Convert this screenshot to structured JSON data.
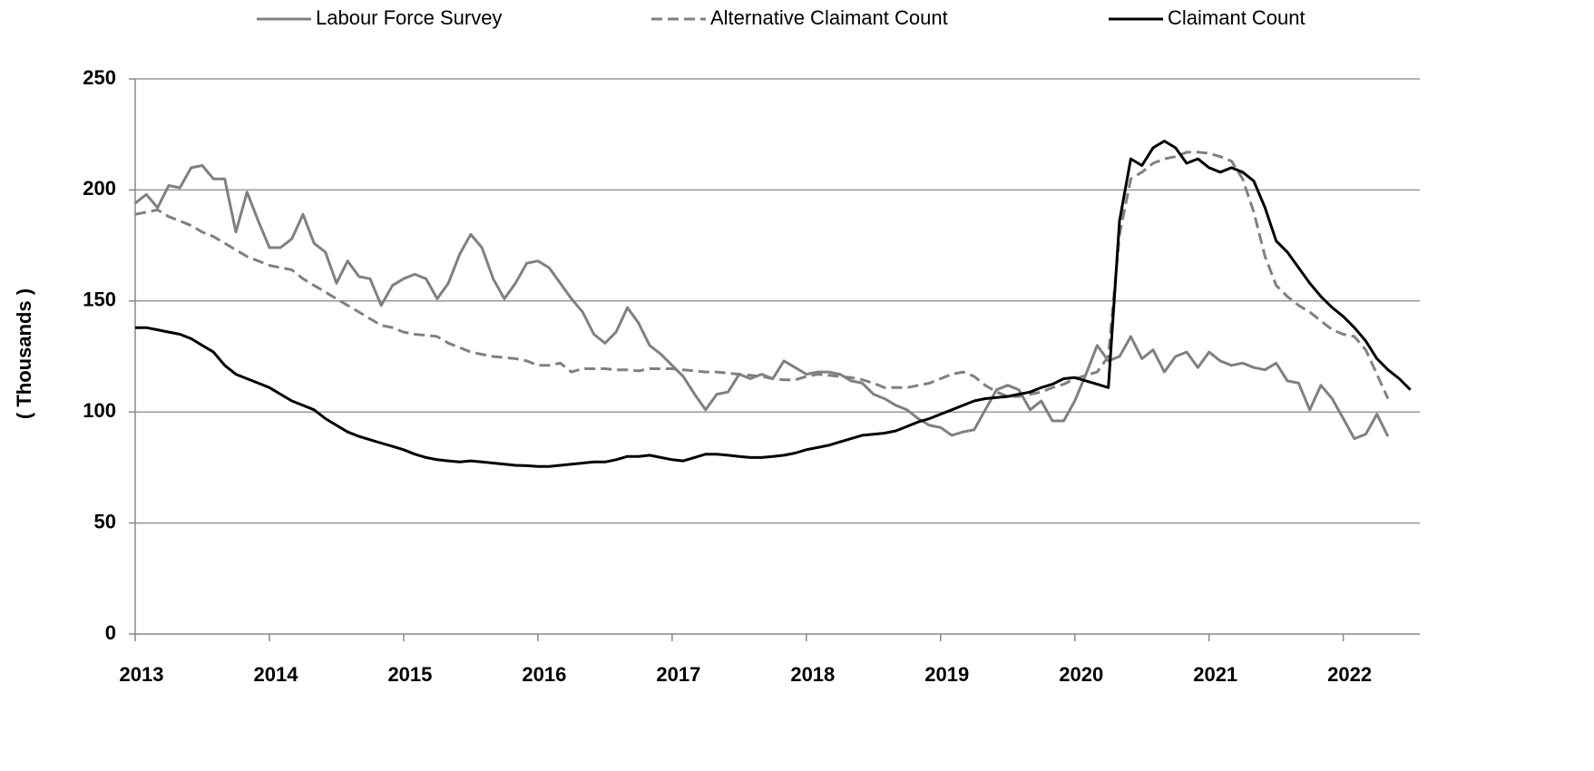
{
  "chart_data": {
    "type": "line",
    "y_label": "( Thousands )",
    "x": [
      2013,
      2013.083,
      2013.167,
      2013.25,
      2013.333,
      2013.417,
      2013.5,
      2013.583,
      2013.667,
      2013.75,
      2013.833,
      2013.917,
      2014,
      2014.083,
      2014.167,
      2014.25,
      2014.333,
      2014.417,
      2014.5,
      2014.583,
      2014.667,
      2014.75,
      2014.833,
      2014.917,
      2015,
      2015.083,
      2015.167,
      2015.25,
      2015.333,
      2015.417,
      2015.5,
      2015.583,
      2015.667,
      2015.75,
      2015.833,
      2015.917,
      2016,
      2016.083,
      2016.167,
      2016.25,
      2016.333,
      2016.417,
      2016.5,
      2016.583,
      2016.667,
      2016.75,
      2016.833,
      2016.917,
      2017,
      2017.083,
      2017.167,
      2017.25,
      2017.333,
      2017.417,
      2017.5,
      2017.583,
      2017.667,
      2017.75,
      2017.833,
      2017.917,
      2018,
      2018.083,
      2018.167,
      2018.25,
      2018.333,
      2018.417,
      2018.5,
      2018.583,
      2018.667,
      2018.75,
      2018.833,
      2018.917,
      2019,
      2019.083,
      2019.167,
      2019.25,
      2019.333,
      2019.417,
      2019.5,
      2019.583,
      2019.667,
      2019.75,
      2019.833,
      2019.917,
      2020,
      2020.083,
      2020.167,
      2020.25,
      2020.333,
      2020.417,
      2020.5,
      2020.583,
      2020.667,
      2020.75,
      2020.833,
      2020.917,
      2021,
      2021.083,
      2021.167,
      2021.25,
      2021.333,
      2021.417,
      2021.5,
      2021.583,
      2021.667,
      2021.75,
      2021.833,
      2021.917,
      2022,
      2022.083,
      2022.167,
      2022.25,
      2022.333,
      2022.417,
      2022.5
    ],
    "series": [
      {
        "name": "Labour Force Survey",
        "color": "#808080",
        "dash": false,
        "values": [
          194,
          198,
          192,
          202,
          201,
          210,
          211,
          205,
          205,
          181,
          199,
          186,
          174,
          174,
          178,
          189,
          176,
          172,
          158,
          168,
          161,
          160,
          148,
          157,
          160,
          162,
          160,
          151,
          158,
          171,
          180,
          174,
          160,
          151,
          158,
          167,
          168,
          165,
          158,
          151,
          145,
          135,
          131,
          136,
          147,
          140,
          130,
          126,
          121,
          116,
          108,
          101,
          108,
          109,
          117,
          115,
          117,
          115,
          123,
          120,
          117,
          118,
          118,
          117,
          114,
          113,
          108,
          106,
          103,
          101,
          97,
          94,
          93,
          89.5,
          91,
          92,
          101,
          110,
          112,
          110,
          101,
          105,
          96,
          96,
          105,
          117,
          130,
          123,
          125,
          134,
          124,
          128,
          118,
          125,
          127,
          120,
          127,
          123,
          121,
          122,
          120,
          119,
          122,
          114,
          113,
          101,
          112,
          106,
          97,
          88,
          90,
          99,
          89,
          null,
          null
        ]
      },
      {
        "name": "Alternative Claimant Count",
        "color": "#808080",
        "dash": true,
        "values": [
          189,
          190,
          191,
          188,
          186,
          184,
          181,
          179,
          176,
          173,
          170,
          168,
          166,
          165,
          164,
          160,
          157,
          154,
          151,
          148,
          145,
          142,
          139,
          138,
          136,
          135,
          134.5,
          134,
          131,
          129,
          127,
          126,
          125,
          124.5,
          124,
          123,
          121,
          121,
          122,
          118,
          119.5,
          119.5,
          119.5,
          119,
          119,
          118.5,
          119.5,
          119.5,
          119.5,
          119,
          118.5,
          118,
          118,
          117.5,
          117,
          116.5,
          116,
          115,
          114.5,
          114.5,
          116,
          117,
          116.5,
          116,
          115.5,
          114.5,
          113,
          111,
          111,
          111,
          112,
          113,
          115,
          117,
          118,
          116,
          112,
          109,
          107,
          107,
          108,
          109,
          111,
          112.5,
          115,
          116.5,
          118,
          125,
          180,
          205,
          208,
          212,
          214,
          215,
          217,
          217,
          216.5,
          215,
          213,
          205,
          190,
          170,
          157,
          152,
          148,
          145,
          141,
          137,
          135,
          134,
          128,
          117,
          106,
          null,
          null
        ]
      },
      {
        "name": "Claimant Count",
        "color": "#000000",
        "dash": false,
        "values": [
          138,
          138,
          137,
          136,
          135,
          133,
          130,
          127,
          121,
          117,
          115,
          113,
          111,
          108,
          105,
          103,
          101,
          97,
          94,
          91,
          89,
          87.5,
          86,
          84.5,
          83,
          81,
          79.5,
          78.5,
          78,
          77.5,
          78,
          77.5,
          77,
          76.5,
          76,
          75.8,
          75.5,
          75.5,
          76,
          76.5,
          77,
          77.5,
          77.5,
          78.5,
          80,
          80,
          80.5,
          79.5,
          78.5,
          78,
          79.5,
          81,
          81,
          80.5,
          80,
          79.5,
          79.5,
          80,
          80.5,
          81.5,
          83,
          84,
          85,
          86.5,
          88,
          89.5,
          90,
          90.5,
          91.5,
          93.5,
          95.5,
          97,
          99,
          101,
          103,
          105,
          106,
          106.5,
          107,
          108,
          109,
          111,
          112.5,
          115,
          115.5,
          114,
          112.5,
          111,
          186,
          214,
          211,
          219,
          222,
          219,
          212,
          214,
          210,
          208,
          210,
          208,
          204,
          192,
          177,
          172,
          165,
          158,
          152,
          147,
          143,
          138,
          132,
          124,
          119,
          115,
          110
        ]
      }
    ],
    "xlim": [
      2013,
      2022.57
    ],
    "xticks": [
      2013,
      2014,
      2015,
      2016,
      2017,
      2018,
      2019,
      2020,
      2021,
      2022
    ],
    "ylim": [
      0,
      250
    ],
    "yticks": [
      0,
      50,
      100,
      150,
      200,
      250
    ],
    "grid": true,
    "legend": "top"
  }
}
